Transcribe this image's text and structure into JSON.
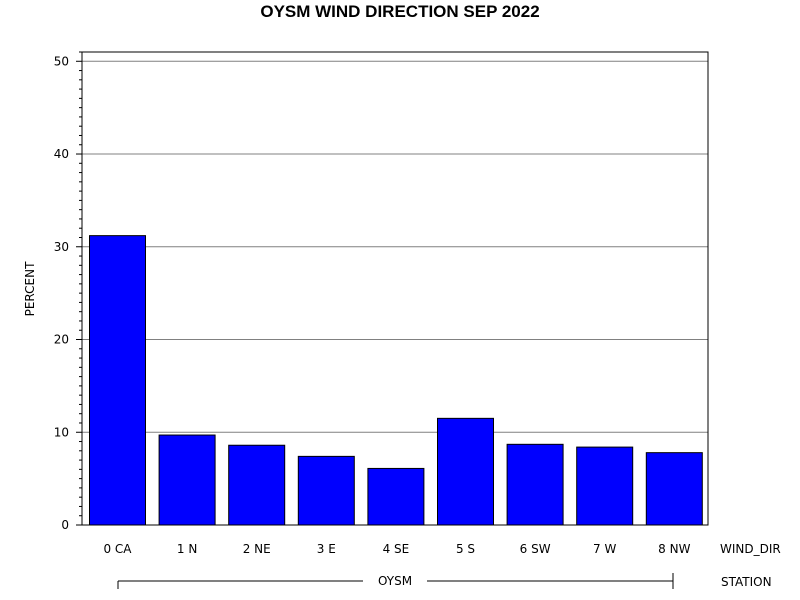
{
  "chart_data": {
    "type": "bar",
    "title": "OYSM WIND DIRECTION SEP 2022",
    "ylabel": "PERCENT",
    "xlabel": "WIND_DIR",
    "group_axis_label": "STATION",
    "group_label": "OYSM",
    "categories": [
      "0 CA",
      "1 N",
      "2 NE",
      "3 E",
      "4 SE",
      "5 S",
      "6 SW",
      "7 W",
      "8 NW"
    ],
    "values": [
      31.2,
      9.7,
      8.6,
      7.4,
      6.1,
      11.5,
      8.7,
      8.4,
      7.8
    ],
    "ylim": [
      0,
      51
    ],
    "yticks": [
      "0",
      "10",
      "20",
      "30",
      "40",
      "50"
    ],
    "grid": true,
    "bar_color": "#0000ff",
    "grid_color": "#808080"
  }
}
